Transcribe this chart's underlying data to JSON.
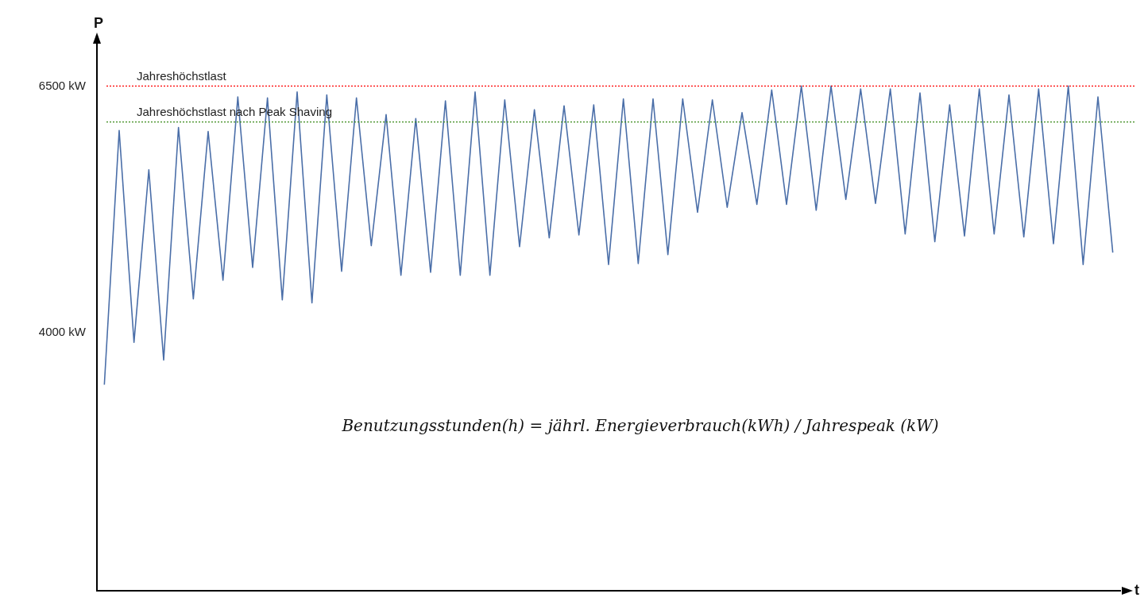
{
  "chart_data": {
    "type": "line",
    "xlabel": "t",
    "ylabel": "P",
    "categories": [
      null,
      null,
      null,
      null,
      null,
      null,
      null,
      null,
      null,
      null,
      null,
      null,
      null,
      null,
      null,
      null,
      null,
      null,
      null,
      null,
      null,
      null,
      null,
      null,
      null,
      null,
      null,
      null,
      null,
      null,
      null,
      null,
      null,
      null,
      null,
      null,
      null,
      null,
      null,
      null,
      null,
      null,
      null,
      null,
      null,
      null,
      null,
      null,
      null,
      null,
      null,
      null,
      null,
      null,
      null,
      null,
      null,
      null,
      null,
      null,
      null,
      null,
      null,
      null,
      null,
      null,
      null,
      null,
      null
    ],
    "series": [
      {
        "color": "#4a6ea8",
        "values": [
          3470,
          6050,
          3900,
          5650,
          3720,
          6080,
          4340,
          6040,
          4530,
          6390,
          4660,
          6380,
          4330,
          6440,
          4300,
          6410,
          4620,
          6380,
          4880,
          6210,
          4580,
          6170,
          4610,
          6350,
          4580,
          6440,
          4580,
          6360,
          4870,
          6260,
          4960,
          6300,
          4990,
          6310,
          4690,
          6370,
          4700,
          6370,
          4790,
          6370,
          5220,
          6360,
          5270,
          6230,
          5300,
          6460,
          5300,
          6500,
          5240,
          6500,
          5350,
          6470,
          5310,
          6470,
          5000,
          6430,
          4920,
          6310,
          4980,
          6470,
          5000,
          6410,
          4970,
          6470,
          4900,
          6500,
          4690,
          6390,
          4810
        ]
      }
    ],
    "ylim": [
      1380,
      6930
    ],
    "yticks": [
      {
        "value": 6500,
        "label": "6500 kW"
      },
      {
        "value": 4000,
        "label": "4000 kW"
      }
    ],
    "tick_labels": "y",
    "grid": false,
    "legend": false,
    "marker": "none",
    "line_style": "solid",
    "ref_lines": [
      {
        "axis": "y",
        "value": 6500,
        "label": "Jahreshöchstlast",
        "color": "#ff0000",
        "line_style": "dotted"
      },
      {
        "axis": "y",
        "value": 6135,
        "label": "Jahreshöchstlast nach Peak Shaving",
        "color": "#3a8a1a",
        "line_style": "dotted"
      }
    ],
    "annotations": [
      "Benutzungsstunden(h) = jährl. Energieverbrauch(kWh) / Jahrespeak (kW)"
    ]
  }
}
